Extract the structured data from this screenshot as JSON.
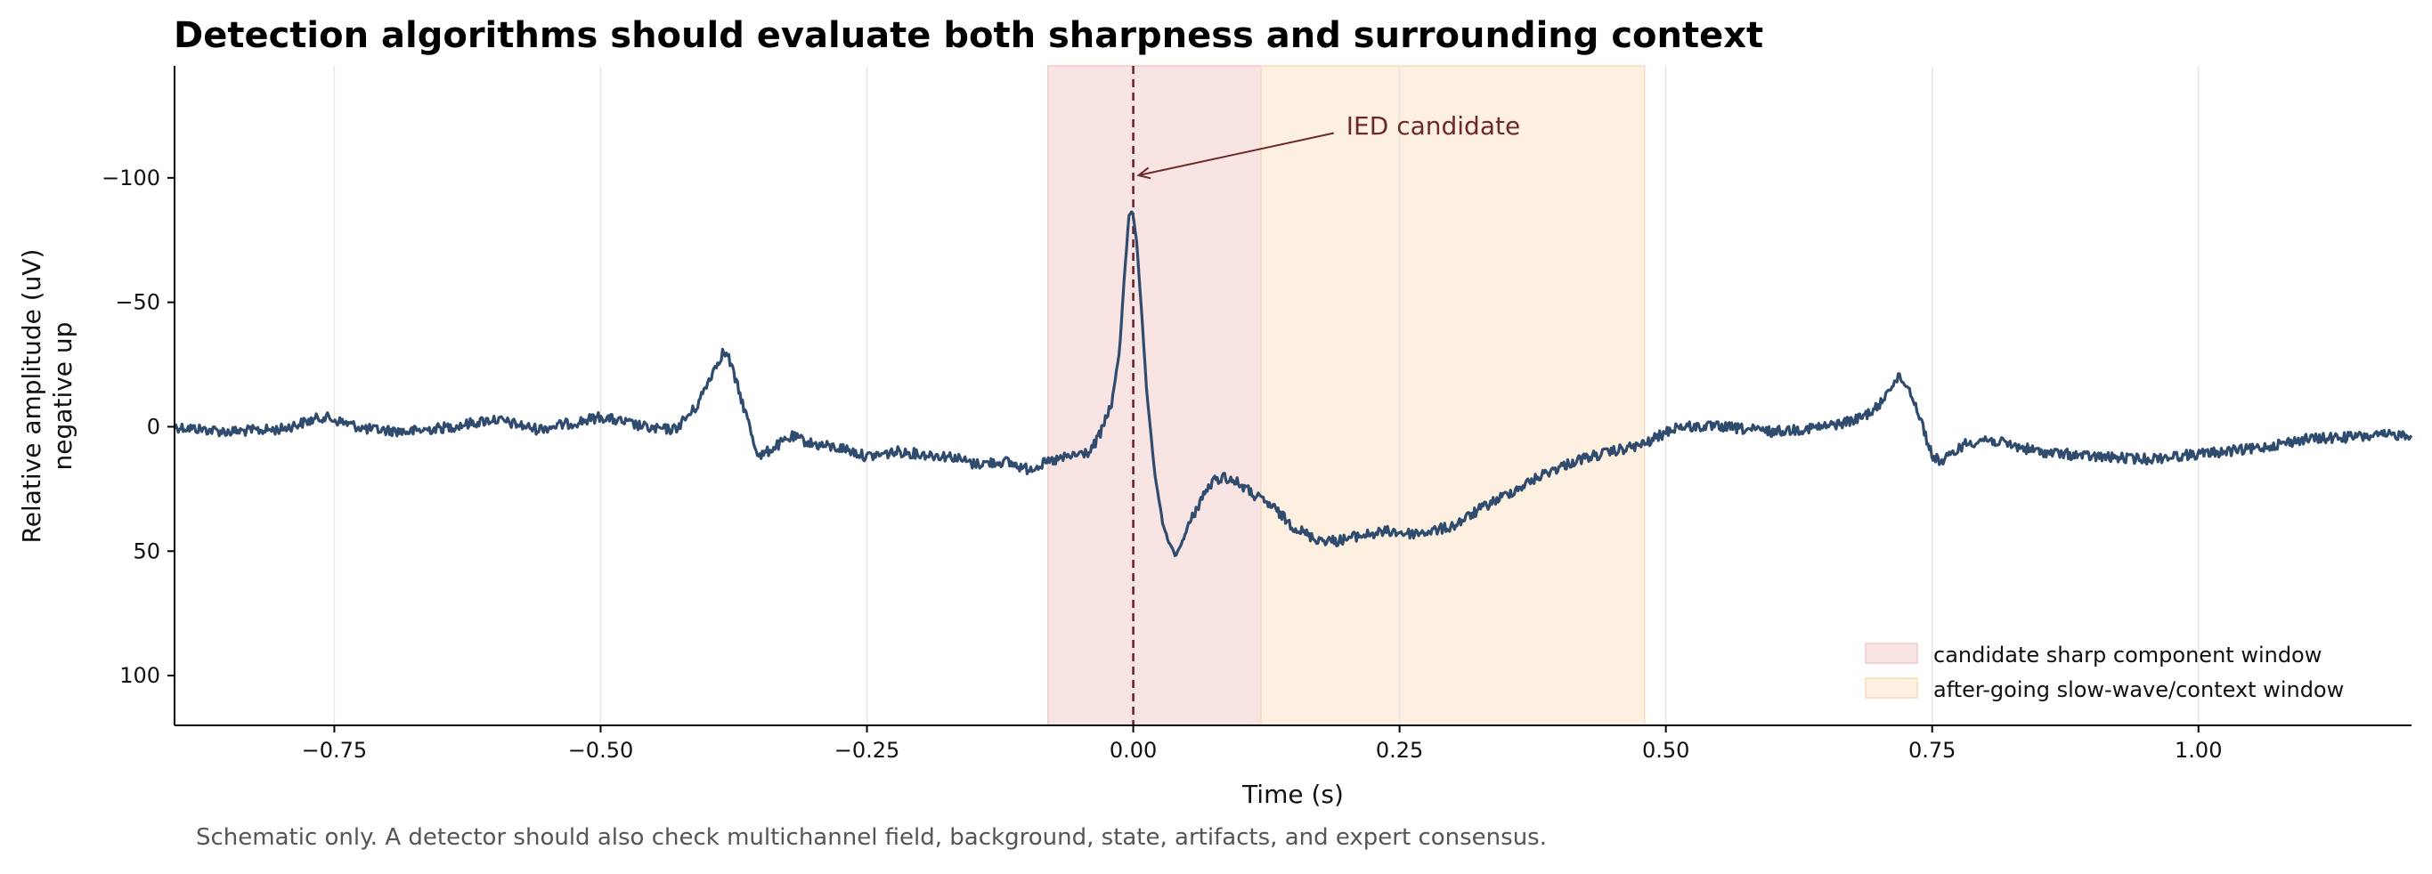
{
  "chart_data": {
    "type": "line",
    "title": "Detection algorithms should evaluate both sharpness and surrounding context",
    "xlabel": "Time (s)",
    "ylabel": "Relative amplitude (uV)",
    "ylabel_line2": "negative up",
    "xlim": [
      -0.9,
      1.2
    ],
    "ylim": [
      -145,
      120
    ],
    "y_inverted": true,
    "xticks": [
      -0.75,
      -0.5,
      -0.25,
      0.0,
      0.25,
      0.5,
      0.75,
      1.0
    ],
    "xtick_labels": [
      "−0.75",
      "−0.50",
      "−0.25",
      "0.00",
      "0.25",
      "0.50",
      "0.75",
      "1.00"
    ],
    "yticks": [
      -100,
      -50,
      0,
      50,
      100
    ],
    "ytick_labels": [
      "−100",
      "−50",
      "0",
      "50",
      "100"
    ],
    "grid": "vertical only",
    "series": [
      {
        "color": "#2f4b6e",
        "x": [
          -0.9,
          -0.85,
          -0.8,
          -0.76,
          -0.72,
          -0.68,
          -0.64,
          -0.6,
          -0.56,
          -0.52,
          -0.5,
          -0.48,
          -0.45,
          -0.43,
          -0.41,
          -0.395,
          -0.385,
          -0.38,
          -0.37,
          -0.36,
          -0.355,
          -0.35,
          -0.34,
          -0.32,
          -0.3,
          -0.27,
          -0.25,
          -0.22,
          -0.2,
          -0.17,
          -0.15,
          -0.12,
          -0.1,
          -0.085,
          -0.06,
          -0.04,
          -0.03,
          -0.02,
          -0.013,
          -0.008,
          -0.004,
          -0.001,
          0.0,
          0.003,
          0.008,
          0.013,
          0.02,
          0.028,
          0.035,
          0.04,
          0.045,
          0.055,
          0.065,
          0.075,
          0.085,
          0.1,
          0.115,
          0.13,
          0.15,
          0.17,
          0.19,
          0.21,
          0.24,
          0.26,
          0.28,
          0.3,
          0.33,
          0.36,
          0.39,
          0.42,
          0.45,
          0.48,
          0.51,
          0.55,
          0.6,
          0.65,
          0.68,
          0.7,
          0.71,
          0.72,
          0.73,
          0.74,
          0.75,
          0.76,
          0.78,
          0.8,
          0.85,
          0.9,
          0.95,
          1.0,
          1.05,
          1.1,
          1.15,
          1.2
        ],
        "y": [
          0,
          2,
          1,
          -4,
          1,
          2,
          0,
          -3,
          1,
          -2,
          -4,
          -2,
          1,
          1,
          -8,
          -22,
          -30,
          -28,
          -14,
          0,
          8,
          12,
          9,
          4,
          7,
          9,
          12,
          10,
          11,
          12,
          15,
          14,
          17,
          15,
          12,
          10,
          2,
          -10,
          -30,
          -62,
          -85,
          -87,
          -85,
          -75,
          -45,
          -12,
          18,
          40,
          48,
          52,
          47,
          37,
          28,
          22,
          20,
          23,
          28,
          32,
          40,
          45,
          46,
          44,
          42,
          43,
          42,
          40,
          32,
          25,
          18,
          13,
          10,
          7,
          0,
          0,
          2,
          0,
          -3,
          -8,
          -16,
          -20,
          -14,
          -2,
          12,
          14,
          7,
          5,
          10,
          12,
          13,
          11,
          9,
          5,
          4,
          3
        ]
      }
    ],
    "shaded_regions": [
      {
        "x0": -0.08,
        "x1": 0.12,
        "color": "#f7e4e3",
        "label": "candidate sharp component window"
      },
      {
        "x0": 0.12,
        "x1": 0.48,
        "color": "#fdf0e0",
        "label": "after-going slow-wave/context window"
      }
    ],
    "vline": {
      "x": 0.0,
      "color": "#6b1e2a",
      "style": "dashed"
    },
    "annotation": {
      "text": "IED candidate",
      "x": 0.2,
      "y": -121,
      "arrow_to_x": 0.005,
      "arrow_to_y": -101
    },
    "legend": {
      "placement": "lower-right",
      "entries": [
        "candidate sharp component window",
        "after-going slow-wave/context window"
      ]
    },
    "footnote": "Schematic only. A detector should also check multichannel field, background, state, artifacts, and expert consensus."
  }
}
